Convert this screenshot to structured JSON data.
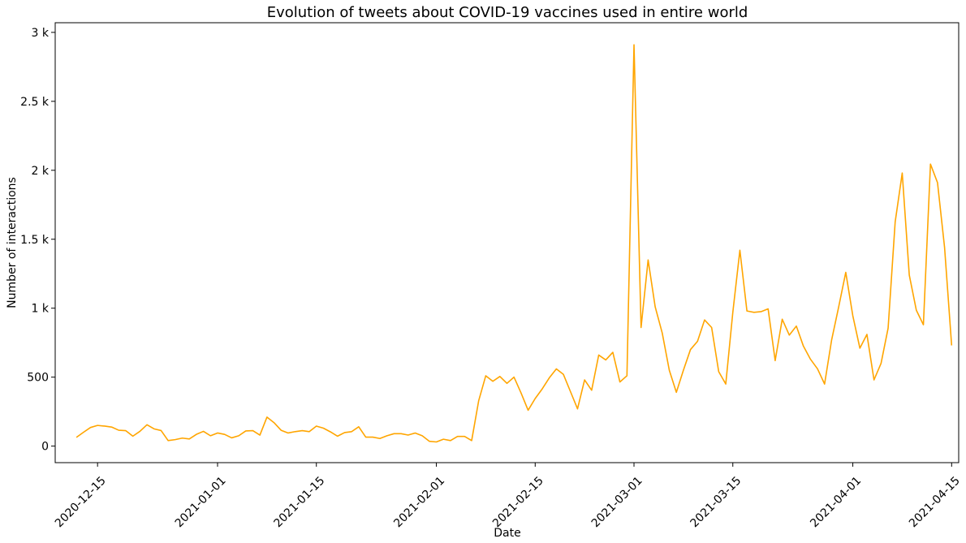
{
  "chart_data": {
    "type": "line",
    "title": "Evolution of tweets about COVID-19 vaccines used in entire world",
    "xlabel": "Date",
    "ylabel": "Number of interactions",
    "x_start": "2020-12-12",
    "x_step_days": 1,
    "xlim": [
      "2020-12-09",
      "2021-04-16"
    ],
    "ylim": [
      -120,
      3070
    ],
    "x_ticks": [
      {
        "date": "2020-12-15",
        "label": "2020-12-15"
      },
      {
        "date": "2021-01-01",
        "label": "2021-01-01"
      },
      {
        "date": "2021-01-15",
        "label": "2021-01-15"
      },
      {
        "date": "2021-02-01",
        "label": "2021-02-01"
      },
      {
        "date": "2021-02-15",
        "label": "2021-02-15"
      },
      {
        "date": "2021-03-01",
        "label": "2021-03-01"
      },
      {
        "date": "2021-03-15",
        "label": "2021-03-15"
      },
      {
        "date": "2021-04-01",
        "label": "2021-04-01"
      },
      {
        "date": "2021-04-15",
        "label": "2021-04-15"
      }
    ],
    "y_ticks": [
      {
        "value": 0,
        "label": "0"
      },
      {
        "value": 500,
        "label": "500"
      },
      {
        "value": 1000,
        "label": "1 k"
      },
      {
        "value": 1500,
        "label": "1.5 k"
      },
      {
        "value": 2000,
        "label": "2 k"
      },
      {
        "value": 2500,
        "label": "2.5 k"
      },
      {
        "value": 3000,
        "label": "3 k"
      }
    ],
    "grid": false,
    "series": [
      {
        "color": "#ffa500",
        "values": [
          63,
          100,
          135,
          150,
          145,
          138,
          115,
          112,
          72,
          107,
          155,
          125,
          113,
          40,
          47,
          58,
          52,
          85,
          107,
          75,
          95,
          85,
          60,
          75,
          110,
          112,
          80,
          210,
          170,
          115,
          95,
          105,
          112,
          105,
          145,
          130,
          103,
          72,
          98,
          105,
          140,
          65,
          65,
          55,
          75,
          90,
          90,
          80,
          95,
          75,
          35,
          30,
          50,
          40,
          70,
          70,
          40,
          330,
          510,
          470,
          505,
          455,
          500,
          385,
          260,
          345,
          415,
          495,
          560,
          520,
          395,
          270,
          480,
          405,
          660,
          625,
          680,
          465,
          510,
          2910,
          860,
          1350,
          1010,
          820,
          550,
          390,
          550,
          700,
          760,
          915,
          860,
          540,
          450,
          970,
          1420,
          980,
          970,
          975,
          995,
          620,
          920,
          805,
          870,
          725,
          630,
          560,
          450,
          770,
          1010,
          1260,
          945,
          710,
          810,
          480,
          600,
          855,
          1625,
          1980,
          1240,
          985,
          880,
          2045,
          1910,
          1440,
          730
        ]
      }
    ]
  }
}
